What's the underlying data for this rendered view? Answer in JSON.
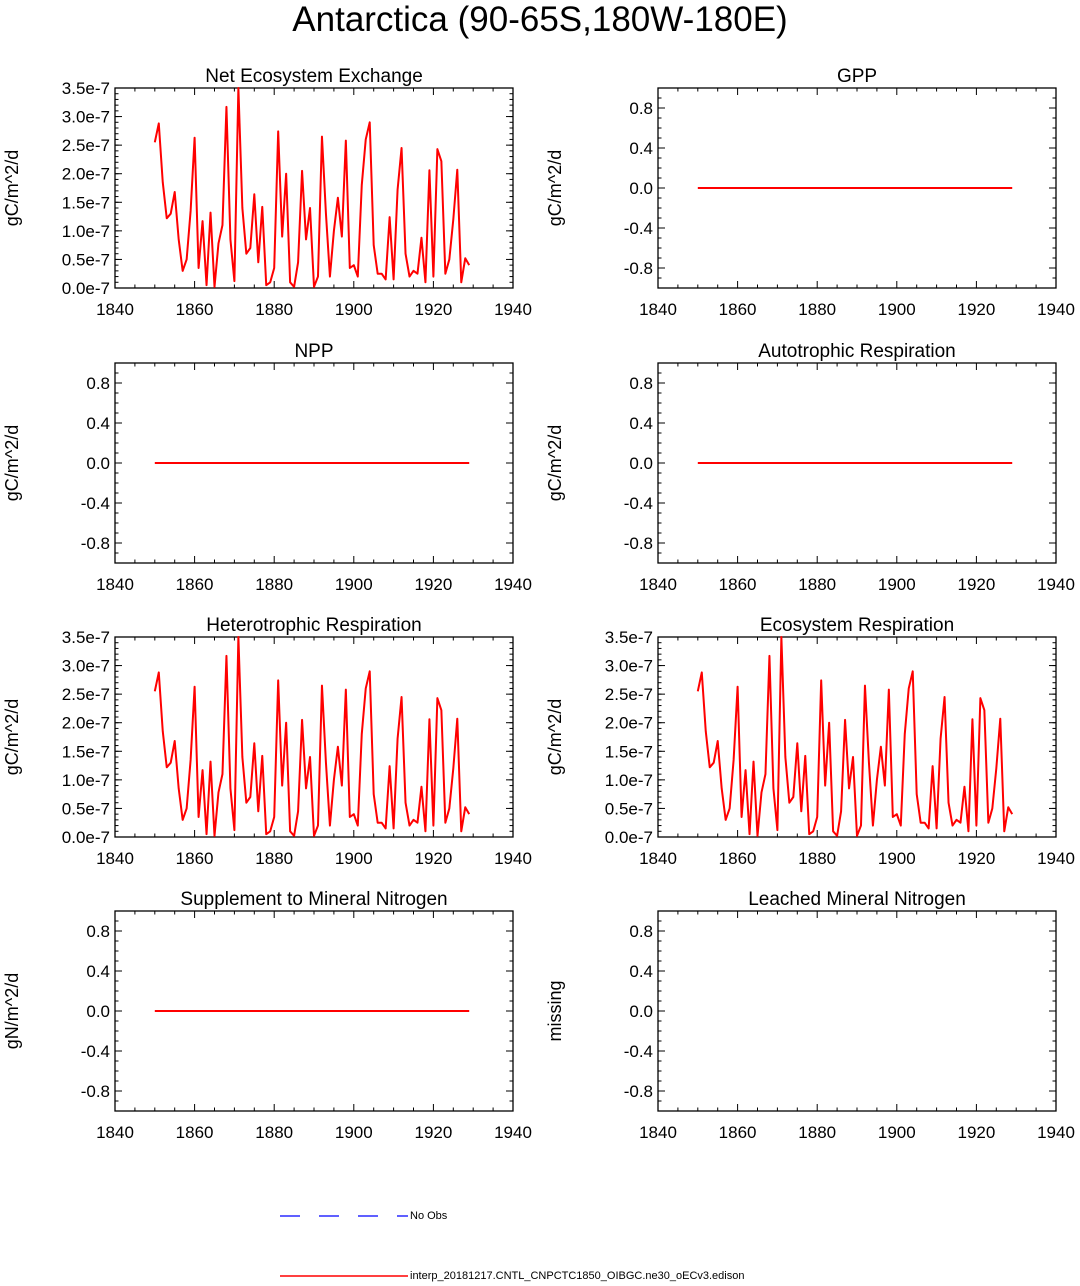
{
  "title": "Antarctica (90-65S,180W-180E)",
  "colors": {
    "model": "#ff0000",
    "obs": "#0000ff",
    "axis": "#000000"
  },
  "legend": [
    {
      "label": "No Obs",
      "color": "#0000ff",
      "style": "dashed"
    },
    {
      "label": "interp_20181217.CNTL_CNPCTC1850_OIBGC.ne30_oECv3.edison",
      "color": "#ff0000",
      "style": "solid"
    }
  ],
  "chart_data": [
    {
      "type": "line",
      "title": "Net Ecosystem Exchange",
      "ylabel": "gC/m^2/d",
      "xlim": [
        1840,
        1940
      ],
      "xticks": [
        "1840",
        "1860",
        "1880",
        "1900",
        "1920",
        "1940"
      ],
      "ylim": [
        0,
        3.5e-07
      ],
      "yticks": [
        "0.0e-7",
        "0.5e-7",
        "1.0e-7",
        "1.5e-7",
        "2.0e-7",
        "2.5e-7",
        "3.0e-7",
        "3.5e-7"
      ],
      "series": [
        {
          "name": "interp_20181217.CNTL_CNPCTC1850_OIBGC.ne30_oECv3.edison",
          "x": [
            1850,
            1851,
            1852,
            1853,
            1854,
            1855,
            1856,
            1857,
            1858,
            1859,
            1860,
            1861,
            1862,
            1863,
            1864,
            1865,
            1866,
            1867,
            1868,
            1869,
            1870,
            1871,
            1872,
            1873,
            1874,
            1875,
            1876,
            1877,
            1878,
            1879,
            1880,
            1881,
            1882,
            1883,
            1884,
            1885,
            1886,
            1887,
            1888,
            1889,
            1890,
            1891,
            1892,
            1893,
            1894,
            1895,
            1896,
            1897,
            1898,
            1899,
            1900,
            1901,
            1902,
            1903,
            1904,
            1905,
            1906,
            1907,
            1908,
            1909,
            1910,
            1911,
            1912,
            1913,
            1914,
            1915,
            1916,
            1917,
            1918,
            1919,
            1920,
            1921,
            1922,
            1923,
            1924,
            1925,
            1926,
            1927,
            1928,
            1929
          ],
          "values": [
            2.55,
            2.88,
            1.85,
            1.22,
            1.3,
            1.68,
            0.85,
            0.3,
            0.5,
            1.35,
            2.63,
            0.35,
            1.17,
            0.05,
            1.32,
            0.02,
            0.78,
            1.1,
            3.17,
            0.85,
            0.12,
            3.5,
            1.4,
            0.6,
            0.7,
            1.64,
            0.45,
            1.42,
            0.05,
            0.1,
            0.35,
            2.74,
            0.9,
            2.0,
            0.1,
            0.02,
            0.45,
            2.05,
            0.85,
            1.4,
            0.02,
            0.2,
            2.65,
            1.3,
            0.2,
            1.0,
            1.58,
            0.9,
            2.58,
            0.35,
            0.4,
            0.2,
            1.8,
            2.6,
            2.9,
            0.75,
            0.25,
            0.25,
            0.15,
            1.24,
            0.15,
            1.72,
            2.45,
            0.6,
            0.2,
            0.3,
            0.25,
            0.88,
            0.1,
            2.06,
            0.2,
            2.43,
            2.22,
            0.25,
            0.5,
            1.2,
            2.07,
            0.1,
            0.52,
            0.4
          ]
        }
      ]
    },
    {
      "type": "line",
      "title": "GPP",
      "ylabel": "gC/m^2/d",
      "xlim": [
        1840,
        1940
      ],
      "xticks": [
        "1840",
        "1860",
        "1880",
        "1900",
        "1920",
        "1940"
      ],
      "ylim": [
        -1,
        1
      ],
      "yticks": [
        "-0.8",
        "-0.4",
        "0.0",
        "0.4",
        "0.8"
      ],
      "series": [
        {
          "name": "interp_20181217.CNTL_CNPCTC1850_OIBGC.ne30_oECv3.edison",
          "x": [
            1850,
            1929
          ],
          "values": [
            0,
            0
          ]
        }
      ]
    },
    {
      "type": "line",
      "title": "NPP",
      "ylabel": "gC/m^2/d",
      "xlim": [
        1840,
        1940
      ],
      "xticks": [
        "1840",
        "1860",
        "1880",
        "1900",
        "1920",
        "1940"
      ],
      "ylim": [
        -1,
        1
      ],
      "yticks": [
        "-0.8",
        "-0.4",
        "0.0",
        "0.4",
        "0.8"
      ],
      "series": [
        {
          "name": "interp_20181217.CNTL_CNPCTC1850_OIBGC.ne30_oECv3.edison",
          "x": [
            1850,
            1929
          ],
          "values": [
            0,
            0
          ]
        }
      ]
    },
    {
      "type": "line",
      "title": "Autotrophic Respiration",
      "ylabel": "gC/m^2/d",
      "xlim": [
        1840,
        1940
      ],
      "xticks": [
        "1840",
        "1860",
        "1880",
        "1900",
        "1920",
        "1940"
      ],
      "ylim": [
        -1,
        1
      ],
      "yticks": [
        "-0.8",
        "-0.4",
        "0.0",
        "0.4",
        "0.8"
      ],
      "series": [
        {
          "name": "interp_20181217.CNTL_CNPCTC1850_OIBGC.ne30_oECv3.edison",
          "x": [
            1850,
            1929
          ],
          "values": [
            0,
            0
          ]
        }
      ]
    },
    {
      "type": "line",
      "title": "Heterotrophic Respiration",
      "ylabel": "gC/m^2/d",
      "xlim": [
        1840,
        1940
      ],
      "xticks": [
        "1840",
        "1860",
        "1880",
        "1900",
        "1920",
        "1940"
      ],
      "ylim": [
        0,
        3.5e-07
      ],
      "yticks": [
        "0.0e-7",
        "0.5e-7",
        "1.0e-7",
        "1.5e-7",
        "2.0e-7",
        "2.5e-7",
        "3.0e-7",
        "3.5e-7"
      ],
      "series": [
        {
          "name": "interp_20181217.CNTL_CNPCTC1850_OIBGC.ne30_oECv3.edison",
          "x": [
            1850,
            1851,
            1852,
            1853,
            1854,
            1855,
            1856,
            1857,
            1858,
            1859,
            1860,
            1861,
            1862,
            1863,
            1864,
            1865,
            1866,
            1867,
            1868,
            1869,
            1870,
            1871,
            1872,
            1873,
            1874,
            1875,
            1876,
            1877,
            1878,
            1879,
            1880,
            1881,
            1882,
            1883,
            1884,
            1885,
            1886,
            1887,
            1888,
            1889,
            1890,
            1891,
            1892,
            1893,
            1894,
            1895,
            1896,
            1897,
            1898,
            1899,
            1900,
            1901,
            1902,
            1903,
            1904,
            1905,
            1906,
            1907,
            1908,
            1909,
            1910,
            1911,
            1912,
            1913,
            1914,
            1915,
            1916,
            1917,
            1918,
            1919,
            1920,
            1921,
            1922,
            1923,
            1924,
            1925,
            1926,
            1927,
            1928,
            1929
          ],
          "values": [
            2.55,
            2.88,
            1.85,
            1.22,
            1.3,
            1.68,
            0.85,
            0.3,
            0.5,
            1.35,
            2.63,
            0.35,
            1.17,
            0.05,
            1.32,
            0.02,
            0.78,
            1.1,
            3.17,
            0.85,
            0.12,
            3.5,
            1.4,
            0.6,
            0.7,
            1.64,
            0.45,
            1.42,
            0.05,
            0.1,
            0.35,
            2.74,
            0.9,
            2.0,
            0.1,
            0.02,
            0.45,
            2.05,
            0.85,
            1.4,
            0.02,
            0.2,
            2.65,
            1.3,
            0.2,
            1.0,
            1.58,
            0.9,
            2.58,
            0.35,
            0.4,
            0.2,
            1.8,
            2.6,
            2.9,
            0.75,
            0.25,
            0.25,
            0.15,
            1.24,
            0.15,
            1.72,
            2.45,
            0.6,
            0.2,
            0.3,
            0.25,
            0.88,
            0.1,
            2.06,
            0.2,
            2.43,
            2.22,
            0.25,
            0.5,
            1.2,
            2.07,
            0.1,
            0.52,
            0.4
          ]
        }
      ]
    },
    {
      "type": "line",
      "title": "Ecosystem Respiration",
      "ylabel": "gC/m^2/d",
      "xlim": [
        1840,
        1940
      ],
      "xticks": [
        "1840",
        "1860",
        "1880",
        "1900",
        "1920",
        "1940"
      ],
      "ylim": [
        0,
        3.5e-07
      ],
      "yticks": [
        "0.0e-7",
        "0.5e-7",
        "1.0e-7",
        "1.5e-7",
        "2.0e-7",
        "2.5e-7",
        "3.0e-7",
        "3.5e-7"
      ],
      "series": [
        {
          "name": "interp_20181217.CNTL_CNPCTC1850_OIBGC.ne30_oECv3.edison",
          "x": [
            1850,
            1851,
            1852,
            1853,
            1854,
            1855,
            1856,
            1857,
            1858,
            1859,
            1860,
            1861,
            1862,
            1863,
            1864,
            1865,
            1866,
            1867,
            1868,
            1869,
            1870,
            1871,
            1872,
            1873,
            1874,
            1875,
            1876,
            1877,
            1878,
            1879,
            1880,
            1881,
            1882,
            1883,
            1884,
            1885,
            1886,
            1887,
            1888,
            1889,
            1890,
            1891,
            1892,
            1893,
            1894,
            1895,
            1896,
            1897,
            1898,
            1899,
            1900,
            1901,
            1902,
            1903,
            1904,
            1905,
            1906,
            1907,
            1908,
            1909,
            1910,
            1911,
            1912,
            1913,
            1914,
            1915,
            1916,
            1917,
            1918,
            1919,
            1920,
            1921,
            1922,
            1923,
            1924,
            1925,
            1926,
            1927,
            1928,
            1929
          ],
          "values": [
            2.55,
            2.88,
            1.85,
            1.22,
            1.3,
            1.68,
            0.85,
            0.3,
            0.5,
            1.35,
            2.63,
            0.35,
            1.17,
            0.05,
            1.32,
            0.02,
            0.78,
            1.1,
            3.17,
            0.85,
            0.12,
            3.5,
            1.4,
            0.6,
            0.7,
            1.64,
            0.45,
            1.42,
            0.05,
            0.1,
            0.35,
            2.74,
            0.9,
            2.0,
            0.1,
            0.02,
            0.45,
            2.05,
            0.85,
            1.4,
            0.02,
            0.2,
            2.65,
            1.3,
            0.2,
            1.0,
            1.58,
            0.9,
            2.58,
            0.35,
            0.4,
            0.2,
            1.8,
            2.6,
            2.9,
            0.75,
            0.25,
            0.25,
            0.15,
            1.24,
            0.15,
            1.72,
            2.45,
            0.6,
            0.2,
            0.3,
            0.25,
            0.88,
            0.1,
            2.06,
            0.2,
            2.43,
            2.22,
            0.25,
            0.5,
            1.2,
            2.07,
            0.1,
            0.52,
            0.4
          ]
        }
      ]
    },
    {
      "type": "line",
      "title": "Supplement to Mineral Nitrogen",
      "ylabel": "gN/m^2/d",
      "xlim": [
        1840,
        1940
      ],
      "xticks": [
        "1840",
        "1860",
        "1880",
        "1900",
        "1920",
        "1940"
      ],
      "ylim": [
        -1,
        1
      ],
      "yticks": [
        "-0.8",
        "-0.4",
        "0.0",
        "0.4",
        "0.8"
      ],
      "series": [
        {
          "name": "interp_20181217.CNTL_CNPCTC1850_OIBGC.ne30_oECv3.edison",
          "x": [
            1850,
            1929
          ],
          "values": [
            0,
            0
          ]
        }
      ]
    },
    {
      "type": "line",
      "title": "Leached Mineral Nitrogen",
      "ylabel": "missing",
      "xlim": [
        1840,
        1940
      ],
      "xticks": [
        "1840",
        "1860",
        "1880",
        "1900",
        "1920",
        "1940"
      ],
      "ylim": [
        -1,
        1
      ],
      "yticks": [
        "-0.8",
        "-0.4",
        "0.0",
        "0.4",
        "0.8"
      ],
      "series": []
    }
  ]
}
